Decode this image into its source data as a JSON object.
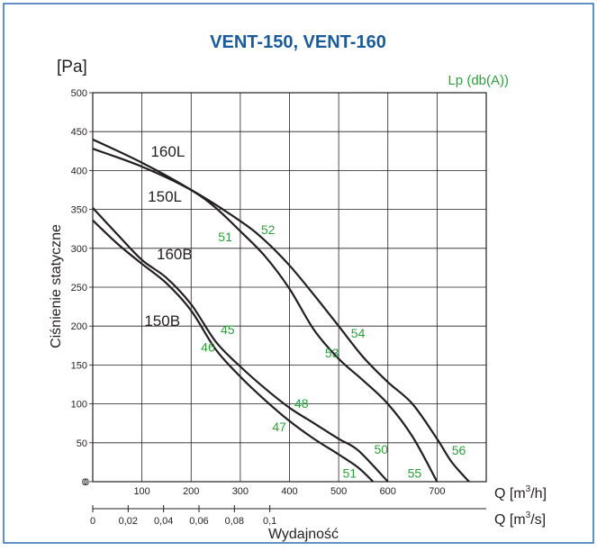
{
  "chart_data": {
    "type": "line",
    "title": "VENT-150, VENT-160",
    "ylabel": "Ciśnienie statyczne",
    "yunit": "[Pa]",
    "xlabel": "Wydajność",
    "x_axis_label": "Q [m³/h]",
    "x_axis2_label": "Q [m³/s]",
    "noise_label": "Lp (db(A))",
    "xlim": [
      0,
      800
    ],
    "ylim": [
      0,
      500
    ],
    "xticks": [
      "100",
      "200",
      "300",
      "400",
      "500",
      "600",
      "700"
    ],
    "yticks": [
      "0",
      "50",
      "100",
      "150",
      "200",
      "250",
      "300",
      "350",
      "400",
      "450",
      "500"
    ],
    "x2ticks": [
      "0",
      "0,02",
      "0,04",
      "0,06",
      "0,08",
      "0,1"
    ],
    "x2tick_values": [
      0,
      0.02,
      0.04,
      0.06,
      0.08,
      0.1
    ],
    "grid": true,
    "series": [
      {
        "name": "160L",
        "x": [
          0,
          100,
          200,
          300,
          350,
          400,
          450,
          500,
          550,
          600,
          650,
          700,
          730,
          765
        ],
        "y": [
          428,
          405,
          375,
          335,
          310,
          278,
          240,
          200,
          160,
          128,
          100,
          55,
          25,
          0
        ]
      },
      {
        "name": "150L",
        "x": [
          0,
          100,
          200,
          250,
          300,
          350,
          400,
          450,
          500,
          550,
          600,
          650,
          700
        ],
        "y": [
          440,
          410,
          375,
          352,
          322,
          290,
          248,
          195,
          158,
          130,
          100,
          58,
          0
        ]
      },
      {
        "name": "160B",
        "x": [
          0,
          50,
          100,
          150,
          200,
          250,
          300,
          350,
          400,
          450,
          500,
          540,
          600
        ],
        "y": [
          352,
          318,
          285,
          262,
          228,
          180,
          148,
          120,
          95,
          75,
          55,
          40,
          0
        ]
      },
      {
        "name": "150B",
        "x": [
          0,
          50,
          100,
          150,
          200,
          250,
          300,
          350,
          400,
          450,
          500,
          540,
          570
        ],
        "y": [
          336,
          306,
          280,
          255,
          220,
          170,
          135,
          105,
          78,
          55,
          35,
          18,
          0
        ]
      }
    ],
    "curve_labels": [
      {
        "text": "160L",
        "x": 118,
        "y": 418
      },
      {
        "text": "150L",
        "x": 112,
        "y": 360
      },
      {
        "text": "160B",
        "x": 130,
        "y": 286
      },
      {
        "text": "150B",
        "x": 105,
        "y": 200
      }
    ],
    "noise_values": [
      {
        "text": "52",
        "x": 342,
        "y": 318
      },
      {
        "text": "51",
        "x": 255,
        "y": 309
      },
      {
        "text": "54",
        "x": 525,
        "y": 185
      },
      {
        "text": "53",
        "x": 472,
        "y": 160
      },
      {
        "text": "45",
        "x": 260,
        "y": 190
      },
      {
        "text": "46",
        "x": 220,
        "y": 167
      },
      {
        "text": "48",
        "x": 410,
        "y": 95
      },
      {
        "text": "47",
        "x": 365,
        "y": 65
      },
      {
        "text": "50",
        "x": 572,
        "y": 36
      },
      {
        "text": "51",
        "x": 508,
        "y": 5
      },
      {
        "text": "55",
        "x": 640,
        "y": 5
      },
      {
        "text": "56",
        "x": 730,
        "y": 35
      }
    ],
    "colors": {
      "curve": "#231f20",
      "title": "#1b5a99",
      "noise": "#2e9e3e",
      "frame": "#2b6cb0"
    }
  }
}
